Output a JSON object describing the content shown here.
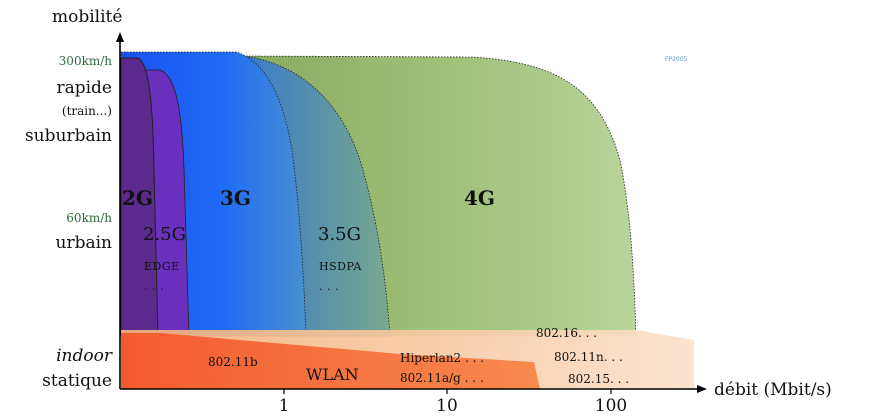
{
  "axes": {
    "y_label": "mobilité",
    "x_label": "débit (Mbit/s)",
    "x_ticks": [
      "1",
      "10",
      "100"
    ]
  },
  "mobility_levels": {
    "speed_high": "300km/h",
    "rapide": "rapide",
    "train": "(train...)",
    "suburbain": "suburbain",
    "speed_mid": "60km/h",
    "urbain": "urbain",
    "indoor": "indoor",
    "statique": "statique"
  },
  "generations": {
    "g2": "2G",
    "g25": "2.5G",
    "g25_tech": "EDGE",
    "g25_more": ". . .",
    "g3": "3G",
    "g35": "3.5G",
    "g35_tech": "HSDPA",
    "g35_more": ". . .",
    "g4": "4G"
  },
  "wireless": {
    "wifi_b": "802.11b",
    "wlan": "WLAN",
    "hiperlan": "Hiperlan2 . . .",
    "wifi_ag": "802.11a/g . . .",
    "wimax": "802.16. . .",
    "wifi_n": "802.11n. . .",
    "wpan": "802.15. . ."
  },
  "credit": "FP2005",
  "colors": {
    "g2": "#5a2a8a",
    "g25": "#6a2fc0",
    "g3": "#1a55f0",
    "g35": "#3f86c0",
    "g4": "#9dbf70",
    "wlan": "#f46a3a",
    "wlan_wide": "#f7c79e"
  }
}
